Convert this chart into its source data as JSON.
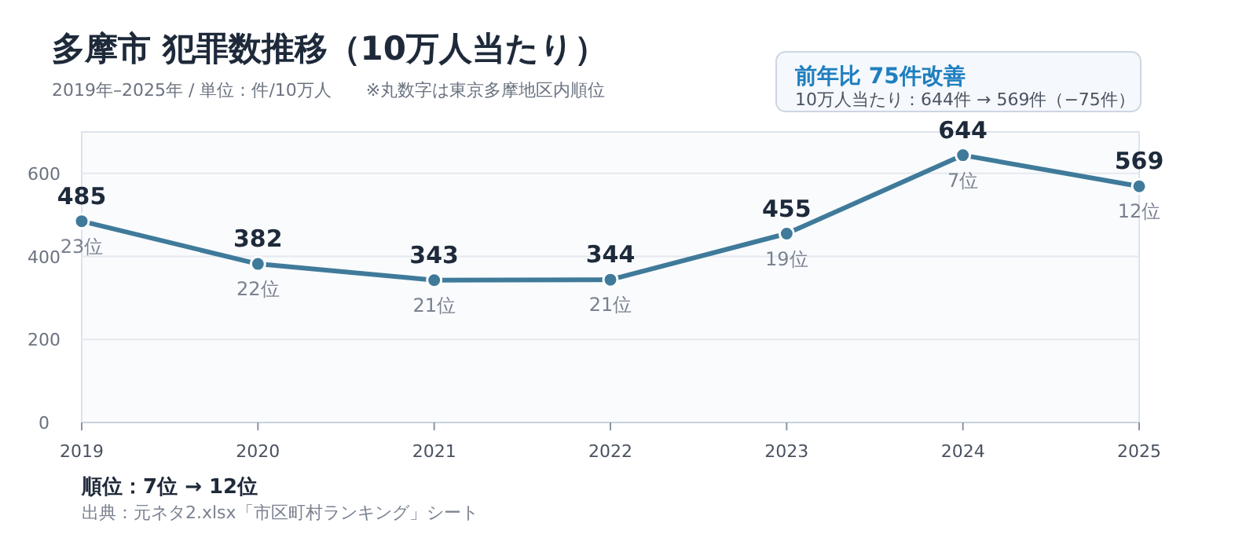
{
  "chart_data": {
    "type": "line",
    "title": "多摩市  犯罪数推移（10万人当たり）",
    "subtitle": "2019年–2025年 / 単位：件/10万人　　※丸数字は東京多摩地区内順位",
    "categories": [
      "2019",
      "2020",
      "2021",
      "2022",
      "2023",
      "2024",
      "2025"
    ],
    "series": [
      {
        "color": "#3f7a9a",
        "values": [
          485,
          382,
          343,
          344,
          455,
          644,
          569
        ]
      }
    ],
    "ylim": [
      0,
      700
    ],
    "yticks": [
      0,
      200,
      400,
      600
    ],
    "grid": "y",
    "marker": "circle",
    "line_style": "solid",
    "data_labels": true,
    "annotations": [
      "前年比  75件改善",
      "10万人当たり：644件 → 569件（−75件）",
      "順位：7位 → 12位",
      "出典：元ネタ2.xlsx「市区町村ランキング」シート",
      {
        "text": "23位",
        "x": "2019",
        "y": 485
      },
      {
        "text": "22位",
        "x": "2020",
        "y": 382
      },
      {
        "text": "21位",
        "x": "2021",
        "y": 343
      },
      {
        "text": "21位",
        "x": "2022",
        "y": 344
      },
      {
        "text": "19位",
        "x": "2023",
        "y": 455
      },
      {
        "text": "7位",
        "x": "2024",
        "y": 644
      },
      {
        "text": "12位",
        "x": "2025",
        "y": 569
      }
    ]
  }
}
